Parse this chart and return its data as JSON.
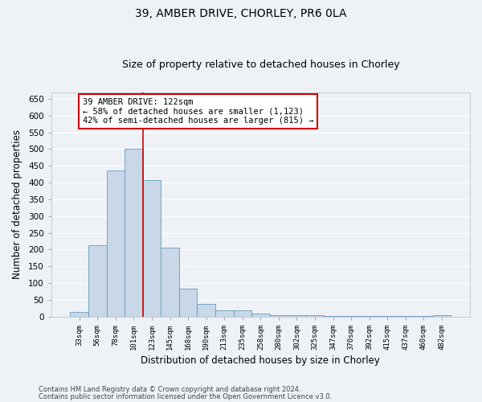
{
  "title_line1": "39, AMBER DRIVE, CHORLEY, PR6 0LA",
  "title_line2": "Size of property relative to detached houses in Chorley",
  "xlabel": "Distribution of detached houses by size in Chorley",
  "ylabel": "Number of detached properties",
  "categories": [
    "33sqm",
    "56sqm",
    "78sqm",
    "101sqm",
    "123sqm",
    "145sqm",
    "168sqm",
    "190sqm",
    "213sqm",
    "235sqm",
    "258sqm",
    "280sqm",
    "302sqm",
    "325sqm",
    "347sqm",
    "370sqm",
    "392sqm",
    "415sqm",
    "437sqm",
    "460sqm",
    "482sqm"
  ],
  "values": [
    15,
    212,
    435,
    502,
    407,
    207,
    84,
    38,
    18,
    18,
    10,
    5,
    5,
    5,
    1,
    1,
    1,
    1,
    1,
    1,
    5
  ],
  "bar_color": "#c8d8e8",
  "bar_edge_color": "#6699bb",
  "highlight_index": 4,
  "highlight_line_color": "#cc0000",
  "annotation_text": "39 AMBER DRIVE: 122sqm\n← 58% of detached houses are smaller (1,123)\n42% of semi-detached houses are larger (815) →",
  "annotation_box_color": "#ffffff",
  "annotation_box_edge_color": "#cc0000",
  "ylim": [
    0,
    670
  ],
  "yticks": [
    0,
    50,
    100,
    150,
    200,
    250,
    300,
    350,
    400,
    450,
    500,
    550,
    600,
    650
  ],
  "background_color": "#eef2f7",
  "plot_background": "#eef2f7",
  "grid_color": "#ffffff",
  "footer_line1": "Contains HM Land Registry data © Crown copyright and database right 2024.",
  "footer_line2": "Contains public sector information licensed under the Open Government Licence v3.0."
}
